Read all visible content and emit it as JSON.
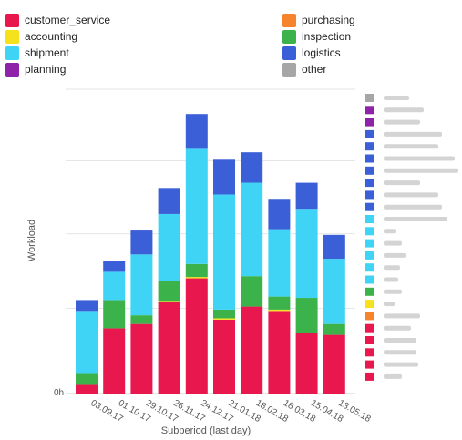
{
  "colors": {
    "customer_service": "#e8184f",
    "accounting": "#f5e11c",
    "shipment": "#3fd4f5",
    "planning": "#8e22a8",
    "purchasing": "#f5842c",
    "inspection": "#3cb34a",
    "logistics": "#3a5fd6",
    "other": "#a6a6a6"
  },
  "legend": [
    {
      "key": "customer_service",
      "label": "customer_service"
    },
    {
      "key": "accounting",
      "label": "accounting"
    },
    {
      "key": "shipment",
      "label": "shipment"
    },
    {
      "key": "planning",
      "label": "planning"
    },
    {
      "key": "purchasing",
      "label": "purchasing"
    },
    {
      "key": "inspection",
      "label": "inspection"
    },
    {
      "key": "logistics",
      "label": "logistics"
    },
    {
      "key": "other",
      "label": "other"
    }
  ],
  "chart_data": {
    "type": "bar",
    "stacked": true,
    "xlabel": "Subperiod (last day)",
    "ylabel": "Workload",
    "y_tick_labels": [
      "0h"
    ],
    "grid": true,
    "legend_position": "top",
    "categories": [
      "03.09.17",
      "01.10.17",
      "29.10.17",
      "26.11.17",
      "24.12.17",
      "21.01.18",
      "18.02.18",
      "18.03.18",
      "15.04.18",
      "13.05.18"
    ],
    "ylim": [
      0,
      7
    ],
    "series": [
      {
        "name": "customer_service",
        "values": [
          0.2,
          1.5,
          1.6,
          2.1,
          2.65,
          1.7,
          2.0,
          1.9,
          1.4,
          1.35
        ]
      },
      {
        "name": "accounting",
        "values": [
          0,
          0,
          0,
          0.03,
          0.03,
          0.03,
          0,
          0.03,
          0,
          0
        ]
      },
      {
        "name": "inspection",
        "values": [
          0.25,
          0.65,
          0.2,
          0.45,
          0.3,
          0.2,
          0.7,
          0.3,
          0.8,
          0.25
        ]
      },
      {
        "name": "shipment",
        "values": [
          1.45,
          0.65,
          1.4,
          1.55,
          2.65,
          2.65,
          2.15,
          1.55,
          2.05,
          1.5
        ]
      },
      {
        "name": "logistics",
        "values": [
          0.25,
          0.25,
          0.55,
          0.6,
          0.8,
          0.8,
          0.7,
          0.7,
          0.6,
          0.55
        ]
      }
    ],
    "secondary_legend_colors": [
      "#a6a6a6",
      "#8e22a8",
      "#8e22a8",
      "#3a5fd6",
      "#3a5fd6",
      "#3a5fd6",
      "#3a5fd6",
      "#3a5fd6",
      "#3a5fd6",
      "#3a5fd6",
      "#3fd4f5",
      "#3fd4f5",
      "#3fd4f5",
      "#3fd4f5",
      "#3fd4f5",
      "#3fd4f5",
      "#3cb34a",
      "#f5e11c",
      "#f5842c",
      "#e8184f",
      "#e8184f",
      "#e8184f",
      "#e8184f",
      "#e8184f"
    ]
  }
}
